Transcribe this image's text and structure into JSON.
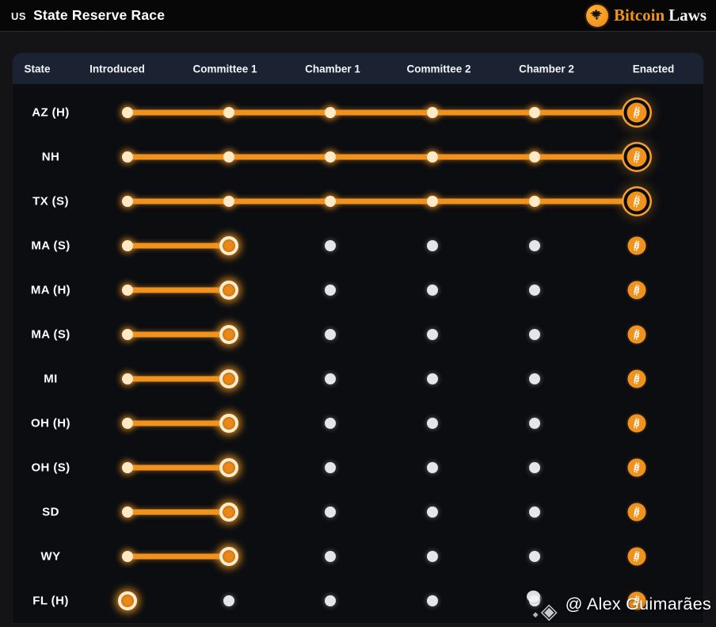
{
  "header": {
    "flag_text": "US",
    "title": "State Reserve Race",
    "brand_orange": "Bitcoin",
    "brand_white": "Laws"
  },
  "table": {
    "columns": [
      "State",
      "Introduced",
      "Committee 1",
      "Chamber 1",
      "Committee 2",
      "Chamber 2",
      "Enacted"
    ],
    "stages": [
      "Introduced",
      "Committee 1",
      "Chamber 1",
      "Committee 2",
      "Chamber 2",
      "Enacted"
    ],
    "rows": [
      {
        "state": "AZ (H)",
        "current_stage": "Enacted",
        "progress": 6
      },
      {
        "state": "NH",
        "current_stage": "Enacted",
        "progress": 6
      },
      {
        "state": "TX (S)",
        "current_stage": "Enacted",
        "progress": 6
      },
      {
        "state": "MA (S)",
        "current_stage": "Committee 1",
        "progress": 2
      },
      {
        "state": "MA (H)",
        "current_stage": "Committee 1",
        "progress": 2
      },
      {
        "state": "MA (S)",
        "current_stage": "Committee 1",
        "progress": 2
      },
      {
        "state": "MI",
        "current_stage": "Committee 1",
        "progress": 2
      },
      {
        "state": "OH (H)",
        "current_stage": "Committee 1",
        "progress": 2
      },
      {
        "state": "OH (S)",
        "current_stage": "Committee 1",
        "progress": 2
      },
      {
        "state": "SD",
        "current_stage": "Committee 1",
        "progress": 2
      },
      {
        "state": "WY",
        "current_stage": "Committee 1",
        "progress": 2
      },
      {
        "state": "FL (H)",
        "current_stage": "Introduced",
        "progress": 1
      }
    ]
  },
  "colors": {
    "accent_orange": "#f0921e",
    "done_dot": "#ffe9c6",
    "pending_dot": "#e6e6e9",
    "table_header_bg": "#1b2231",
    "card_bg": "#0b0d11",
    "appbar_bg": "#070708"
  },
  "icons": {
    "brand_logo": "eagle-seal-icon",
    "enacted_marker": "bitcoin-icon",
    "watermark_logo": "watermark-logo-icon",
    "watermark_glyph": "◈",
    "watermark_dot_glyph": "◆"
  },
  "watermark": {
    "text": "@ Alex Guimarães"
  }
}
